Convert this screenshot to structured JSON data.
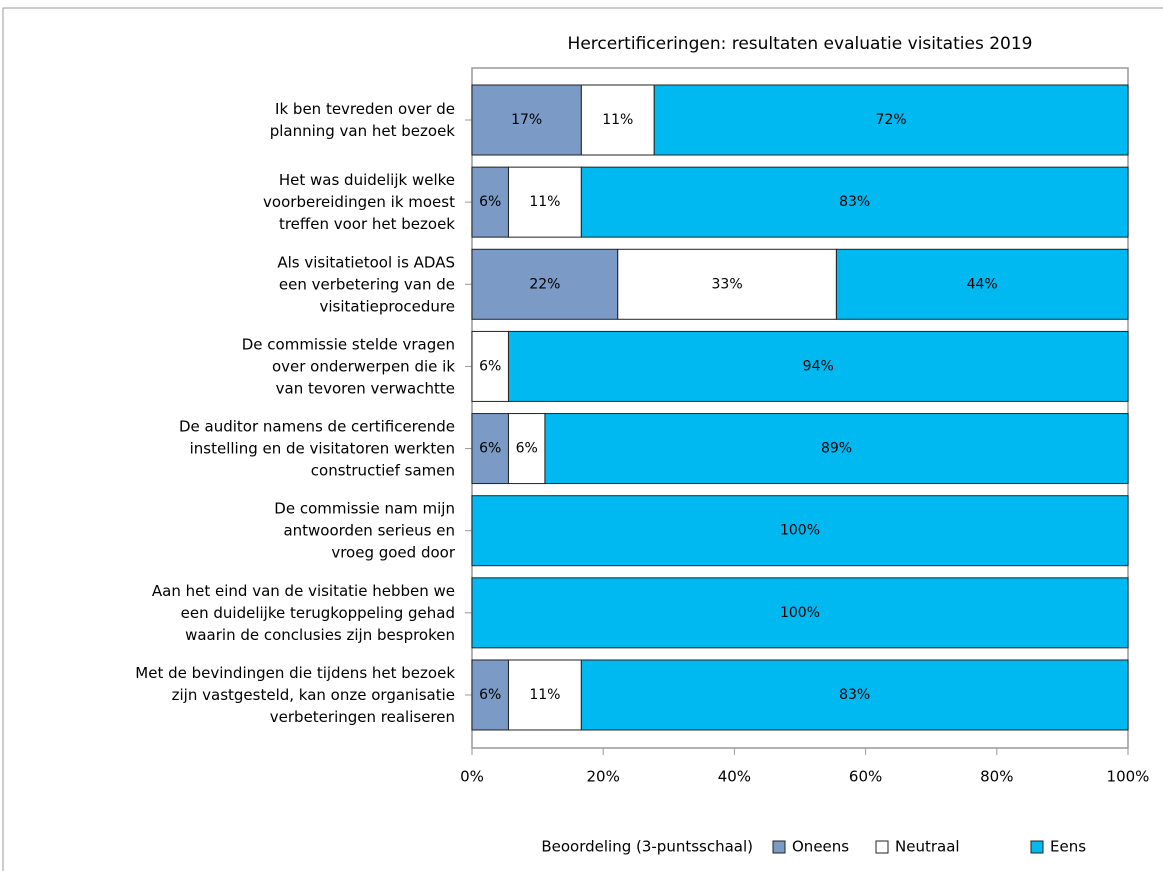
{
  "chart_data": {
    "type": "stacked-bar-horizontal",
    "title": "Hercertificeringen: resultaten evaluatie visitaties 2019",
    "categories": [
      "Ik ben tevreden over de\nplanning van het bezoek",
      "Het was duidelijk welke\nvoorbereidingen ik moest\ntreffen voor het bezoek",
      "Als visitatietool is ADAS\neen verbetering van de\nvisitatieprocedure",
      "De commissie stelde vragen\nover onderwerpen die ik\nvan tevoren verwachtte",
      "De auditor namens de certificerende\ninstelling en de visitatoren werkten\nconstructief samen",
      "De commissie nam mijn\nantwoorden serieus en\nvroeg goed door",
      "Aan het eind van de visitatie hebben we\neen duidelijke terugkoppeling gehad\nwaarin de conclusies zijn besproken",
      "Met de bevindingen die tijdens het bezoek\nzijn vastgesteld, kan onze organisatie\nverbeteringen realiseren"
    ],
    "series": [
      {
        "name": "Oneens",
        "color": "#7b9bc6",
        "values": [
          16.67,
          5.56,
          22.22,
          0,
          5.56,
          0,
          0,
          5.56
        ],
        "value_labels": [
          "17%",
          "6%",
          "22%",
          null,
          "6%",
          null,
          null,
          "6%"
        ]
      },
      {
        "name": "Neutraal",
        "color": "#ffffff",
        "values": [
          11.11,
          11.11,
          33.33,
          5.56,
          5.56,
          0,
          0,
          11.11
        ],
        "value_labels": [
          "11%",
          "11%",
          "33%",
          "6%",
          "6%",
          null,
          null,
          "11%"
        ]
      },
      {
        "name": "Eens",
        "color": "#00b9f1",
        "values": [
          72.22,
          83.33,
          44.44,
          94.44,
          88.89,
          100,
          100,
          83.33
        ],
        "value_labels": [
          "72%",
          "83%",
          "44%",
          "94%",
          "89%",
          "100%",
          "100%",
          "83%"
        ]
      }
    ],
    "legend_title": "Beoordeling (3-puntsschaal)",
    "xlim": [
      0,
      100
    ],
    "xticks": [
      {
        "value": 0,
        "label": "0%"
      },
      {
        "value": 20,
        "label": "20%"
      },
      {
        "value": 40,
        "label": "40%"
      },
      {
        "value": 60,
        "label": "60%"
      },
      {
        "value": 80,
        "label": "80%"
      },
      {
        "value": 100,
        "label": "100%"
      }
    ],
    "legend": "bottom"
  }
}
